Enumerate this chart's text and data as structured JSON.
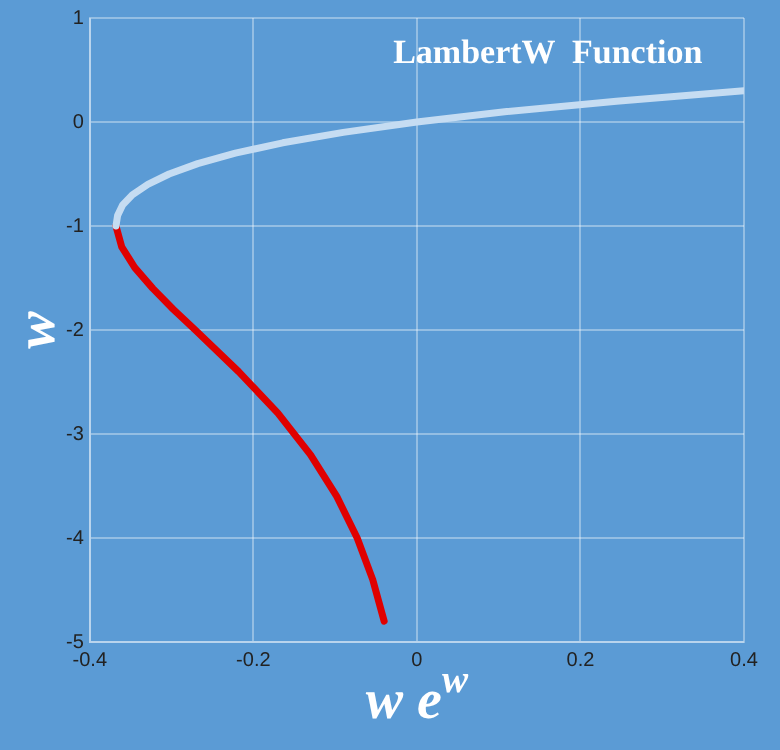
{
  "chart_data": {
    "type": "line",
    "title": "LambertW  Function",
    "xlabel": "w e$^{w}$",
    "ylabel": "w",
    "xlim": [
      -0.4,
      0.4
    ],
    "xticks": [
      -0.4,
      -0.2,
      0,
      0.2,
      0.4
    ],
    "ylim": [
      -5,
      1
    ],
    "yticks": [
      -5,
      -4,
      -3,
      -2,
      -1,
      0,
      1
    ],
    "grid": true,
    "marker": "none",
    "line_style": "solid",
    "series": [
      {
        "color": "#c5dcf2",
        "x": [
          -0.368,
          -0.366,
          -0.36,
          -0.348,
          -0.329,
          -0.303,
          -0.268,
          -0.222,
          -0.164,
          -0.09,
          0,
          0.11,
          0.244,
          0.4
        ],
        "values": [
          -1,
          -0.9,
          -0.8,
          -0.7,
          -0.6,
          -0.5,
          -0.4,
          -0.3,
          -0.2,
          -0.1,
          0,
          0.1,
          0.2,
          0.3
        ]
      },
      {
        "color": "#e00000",
        "x": [
          -0.368,
          -0.361,
          -0.345,
          -0.323,
          -0.298,
          -0.271,
          -0.218,
          -0.17,
          -0.13,
          -0.098,
          -0.073,
          -0.054,
          -0.04
        ],
        "values": [
          -1,
          -1.2,
          -1.4,
          -1.6,
          -1.8,
          -2,
          -2.4,
          -2.8,
          -3.2,
          -3.6,
          -4,
          -4.4,
          -4.8
        ]
      }
    ]
  }
}
